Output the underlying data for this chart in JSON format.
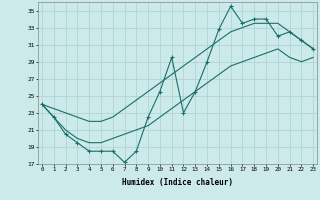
{
  "xlabel": "Humidex (Indice chaleur)",
  "background_color": "#cceaea",
  "grid_color": "#aad0d0",
  "line_color": "#1a6e6a",
  "hours": [
    0,
    1,
    2,
    3,
    4,
    5,
    6,
    7,
    8,
    9,
    10,
    11,
    12,
    13,
    14,
    15,
    16,
    17,
    18,
    19,
    20,
    21,
    22,
    23
  ],
  "curve_jagged": [
    24,
    22.5,
    20.5,
    19.5,
    18.5,
    18.5,
    18.5,
    17.2,
    18.5,
    22.5,
    25.5,
    29.5,
    23.0,
    25.5,
    29.0,
    32.8,
    35.5,
    33.5,
    34.0,
    34.0,
    32.0,
    32.5,
    31.5,
    30.5
  ],
  "curve_upper": [
    24.0,
    23.5,
    23.0,
    22.5,
    22.0,
    22.0,
    22.5,
    23.5,
    24.5,
    25.5,
    26.5,
    27.5,
    28.5,
    29.5,
    30.5,
    31.5,
    32.5,
    33.0,
    33.5,
    33.5,
    33.5,
    32.5,
    31.5,
    30.5
  ],
  "curve_lower": [
    24.0,
    22.5,
    21.0,
    20.0,
    19.5,
    19.5,
    20.0,
    20.5,
    21.0,
    21.5,
    22.5,
    23.5,
    24.5,
    25.5,
    26.5,
    27.5,
    28.5,
    29.0,
    29.5,
    30.0,
    30.5,
    29.5,
    29.0,
    29.5
  ],
  "ylim": [
    17,
    36
  ],
  "yticks": [
    17,
    19,
    21,
    23,
    25,
    27,
    29,
    31,
    33,
    35
  ],
  "xlim": [
    0,
    23
  ],
  "xticks": [
    0,
    1,
    2,
    3,
    4,
    5,
    6,
    7,
    8,
    9,
    10,
    11,
    12,
    13,
    14,
    15,
    16,
    17,
    18,
    19,
    20,
    21,
    22,
    23
  ]
}
